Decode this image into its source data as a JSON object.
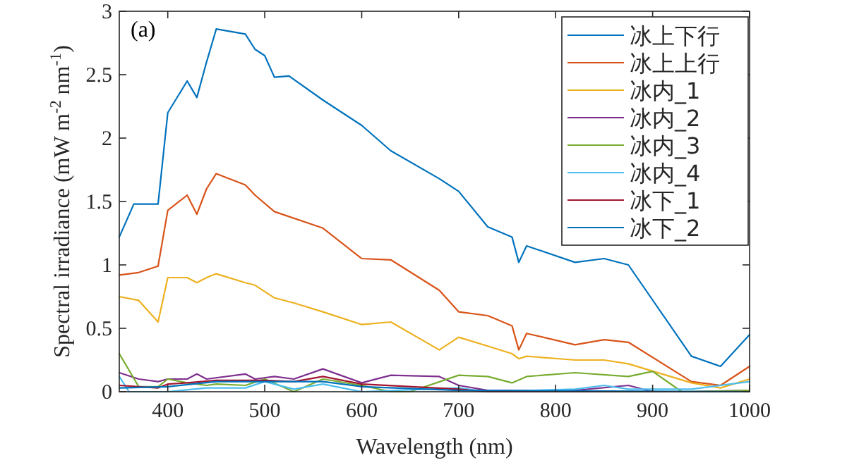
{
  "chart_data": {
    "type": "line",
    "xlabel": "Wavelength (nm)",
    "ylabel": "Spectral irradiance (mW m$^{-2}$ nm$^{-1}$)",
    "annotations": [
      "(a)"
    ],
    "xlim": [
      350,
      1000
    ],
    "ylim": [
      0,
      3
    ],
    "xticks": [
      400,
      500,
      600,
      700,
      800,
      900,
      1000
    ],
    "yticks": [
      0,
      0.5,
      1,
      1.5,
      2,
      2.5,
      3
    ],
    "grid": false,
    "legend": "top right",
    "marker": "none",
    "line_style": "solid",
    "series": [
      {
        "name": "冰上下行",
        "color": "#0072bd",
        "x": [
          350,
          365,
          390,
          400,
          420,
          430,
          440,
          450,
          480,
          490,
          500,
          510,
          525,
          560,
          600,
          630,
          680,
          700,
          730,
          755,
          762,
          770,
          820,
          850,
          875,
          940,
          970,
          1000
        ],
        "values": [
          1.22,
          1.48,
          1.48,
          2.2,
          2.45,
          2.32,
          2.6,
          2.86,
          2.82,
          2.7,
          2.65,
          2.48,
          2.49,
          2.3,
          2.1,
          1.9,
          1.68,
          1.58,
          1.3,
          1.22,
          1.02,
          1.15,
          1.02,
          1.05,
          1.0,
          0.28,
          0.2,
          0.45
        ]
      },
      {
        "name": "冰上上行",
        "color": "#d95319",
        "x": [
          350,
          370,
          390,
          400,
          420,
          430,
          440,
          450,
          480,
          490,
          510,
          560,
          600,
          630,
          680,
          700,
          730,
          755,
          762,
          770,
          820,
          850,
          875,
          940,
          970,
          1000
        ],
        "values": [
          0.92,
          0.94,
          0.99,
          1.43,
          1.55,
          1.4,
          1.6,
          1.72,
          1.63,
          1.55,
          1.42,
          1.29,
          1.05,
          1.04,
          0.8,
          0.63,
          0.6,
          0.52,
          0.33,
          0.46,
          0.37,
          0.41,
          0.39,
          0.08,
          0.05,
          0.2
        ]
      },
      {
        "name": "冰内_1",
        "color": "#edb120",
        "x": [
          350,
          370,
          390,
          400,
          420,
          430,
          440,
          450,
          480,
          490,
          510,
          530,
          560,
          600,
          630,
          680,
          700,
          730,
          755,
          762,
          770,
          820,
          850,
          875,
          940,
          970,
          1000
        ],
        "values": [
          0.75,
          0.72,
          0.55,
          0.9,
          0.9,
          0.86,
          0.9,
          0.93,
          0.86,
          0.84,
          0.74,
          0.7,
          0.63,
          0.53,
          0.55,
          0.33,
          0.43,
          0.36,
          0.3,
          0.26,
          0.28,
          0.25,
          0.25,
          0.22,
          0.07,
          0.03,
          0.1
        ]
      },
      {
        "name": "冰内_2",
        "color": "#7e2f8e",
        "x": [
          350,
          370,
          390,
          400,
          420,
          430,
          440,
          480,
          490,
          510,
          530,
          560,
          600,
          630,
          680,
          700,
          730,
          760,
          820,
          875,
          900,
          940,
          1000
        ],
        "values": [
          0.15,
          0.1,
          0.08,
          0.1,
          0.1,
          0.14,
          0.1,
          0.14,
          0.1,
          0.12,
          0.1,
          0.18,
          0.07,
          0.13,
          0.12,
          0.05,
          0.01,
          0.01,
          0.01,
          0.05,
          0.0,
          0.0,
          0.01
        ]
      },
      {
        "name": "冰内_3",
        "color": "#77ac30",
        "x": [
          350,
          370,
          390,
          400,
          420,
          440,
          450,
          480,
          500,
          530,
          560,
          600,
          630,
          650,
          700,
          730,
          755,
          770,
          820,
          875,
          900,
          930,
          1000
        ],
        "values": [
          0.3,
          0.04,
          0.04,
          0.1,
          0.07,
          0.05,
          0.06,
          0.05,
          0.1,
          0.0,
          0.1,
          0.05,
          0.0,
          0.0,
          0.13,
          0.12,
          0.07,
          0.12,
          0.15,
          0.12,
          0.16,
          0.0,
          0.01
        ]
      },
      {
        "name": "冰内_4",
        "color": "#4dbeee",
        "x": [
          350,
          360,
          400,
          440,
          480,
          500,
          530,
          560,
          600,
          700,
          730,
          820,
          850,
          875,
          940,
          1000
        ],
        "values": [
          0.12,
          0.0,
          0.0,
          0.03,
          0.03,
          0.08,
          0.02,
          0.06,
          0.0,
          0.03,
          0.0,
          0.02,
          0.05,
          0.02,
          0.02,
          0.08
        ]
      },
      {
        "name": "冰下_1",
        "color": "#a2142f",
        "x": [
          350,
          390,
          400,
          420,
          450,
          500,
          530,
          560,
          600,
          700,
          730,
          1000
        ],
        "values": [
          0.05,
          0.03,
          0.06,
          0.07,
          0.09,
          0.09,
          0.08,
          0.12,
          0.06,
          0.02,
          0.0,
          0.0
        ]
      },
      {
        "name": "冰下_2",
        "color": "#0072bd",
        "x": [
          350,
          400,
          450,
          500,
          560,
          600,
          700,
          1000
        ],
        "values": [
          0.03,
          0.04,
          0.08,
          0.08,
          0.08,
          0.04,
          0.01,
          0.0
        ]
      }
    ]
  }
}
